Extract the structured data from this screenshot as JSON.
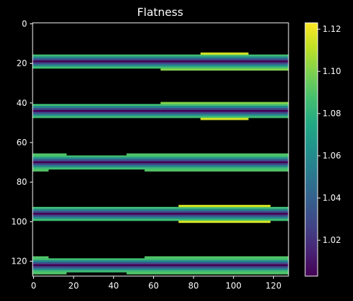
{
  "chart_data": {
    "type": "heatmap",
    "title": "Flatness",
    "xlabel": "",
    "ylabel": "",
    "xlim": [
      0,
      128
    ],
    "ylim": [
      128,
      0
    ],
    "xticks": [
      0,
      20,
      40,
      60,
      80,
      100,
      120
    ],
    "yticks": [
      0,
      20,
      40,
      60,
      80,
      100,
      120
    ],
    "colormap": "viridis",
    "background": "#000000",
    "colorbar": {
      "range": [
        1.003,
        1.123
      ],
      "ticks": [
        1.02,
        1.04,
        1.06,
        1.08,
        1.1,
        1.12
      ],
      "tick_labels": [
        "1.02",
        "1.04",
        "1.06",
        "1.08",
        "1.10",
        "1.12"
      ]
    },
    "bands": [
      {
        "center_row": 19,
        "half_width": 3,
        "min_value": 1.003,
        "edge_value": 1.085,
        "notches": [
          {
            "side": "top",
            "x": [
              84,
              108
            ],
            "rows": 1,
            "value": 1.115
          },
          {
            "side": "bottom",
            "x": [
              64,
              128
            ],
            "rows": 1,
            "value": 1.1
          }
        ]
      },
      {
        "center_row": 44,
        "half_width": 3,
        "min_value": 1.003,
        "edge_value": 1.085,
        "notches": [
          {
            "side": "top",
            "x": [
              64,
              128
            ],
            "rows": 1,
            "value": 1.1
          },
          {
            "side": "bottom",
            "x": [
              84,
              108
            ],
            "rows": 1,
            "value": 1.115
          }
        ]
      },
      {
        "center_row": 70,
        "half_width": 3,
        "min_value": 1.003,
        "edge_value": 1.085,
        "notches": [
          {
            "side": "top",
            "x": [
              0,
              17
            ],
            "rows": 1,
            "value": 1.09
          },
          {
            "side": "top",
            "x": [
              47,
              128
            ],
            "rows": 1,
            "value": 1.09
          },
          {
            "side": "bottom",
            "x": [
              0,
              8
            ],
            "rows": 1,
            "value": 1.09
          },
          {
            "side": "bottom",
            "x": [
              56,
              128
            ],
            "rows": 1,
            "value": 1.09
          }
        ]
      },
      {
        "center_row": 96,
        "half_width": 3,
        "min_value": 1.003,
        "edge_value": 1.085,
        "notches": [
          {
            "side": "top",
            "x": [
              73,
              119
            ],
            "rows": 1,
            "value": 1.115
          },
          {
            "side": "bottom",
            "x": [
              73,
              119
            ],
            "rows": 1,
            "value": 1.115
          }
        ]
      },
      {
        "center_row": 122,
        "half_width": 3,
        "min_value": 1.003,
        "edge_value": 1.085,
        "notches": [
          {
            "side": "top",
            "x": [
              0,
              8
            ],
            "rows": 1,
            "value": 1.09
          },
          {
            "side": "top",
            "x": [
              56,
              128
            ],
            "rows": 1,
            "value": 1.09
          },
          {
            "side": "bottom",
            "x": [
              0,
              17
            ],
            "rows": 1,
            "value": 1.09
          },
          {
            "side": "bottom",
            "x": [
              47,
              128
            ],
            "rows": 1,
            "value": 1.09
          }
        ]
      }
    ]
  }
}
